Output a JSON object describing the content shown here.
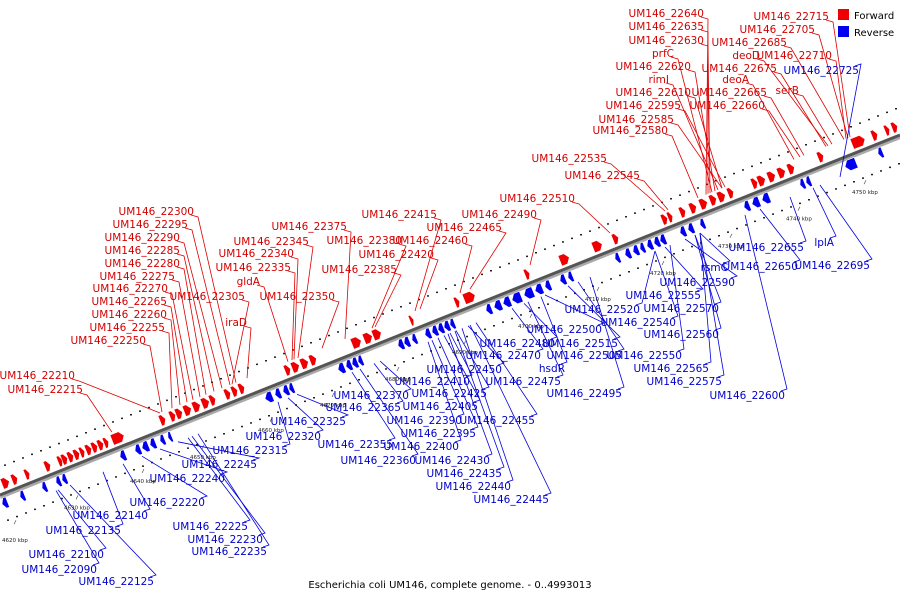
{
  "caption": "Escherichia coli UM146, complete genome. - 0..4993013",
  "legend": [
    {
      "label": "Forward",
      "color": "#ee0000"
    },
    {
      "label": "Reverse",
      "color": "#0000ee"
    }
  ],
  "kbp_ticks": [
    "4620 kbp",
    "4630 kbp",
    "4640 kbp",
    "4650 kbp",
    "4660 kbp",
    "4670 kbp",
    "4680 kbp",
    "4690 kbp",
    "4700 kbp",
    "4710 kbp",
    "4720 kbp",
    "4730 kbp",
    "4740 kbp",
    "4750 kbp"
  ],
  "forward_labels": [
    "UM146_22640",
    "UM146_22635",
    "UM146_22630",
    "prfC",
    "UM146_22620",
    "rimI",
    "UM146_22610",
    "UM146_22595",
    "UM146_22585",
    "UM146_22580",
    "UM146_22715",
    "UM146_22705",
    "UM146_22685",
    "deoD",
    "UM146_22710",
    "UM146_22675",
    "deoA",
    "UM146_22665",
    "UM146_22660",
    "serB",
    "UM146_22535",
    "UM146_22545",
    "UM146_22510",
    "UM146_22490",
    "UM146_22415",
    "UM146_22465",
    "UM146_22375",
    "UM146_22380",
    "UM146_22460",
    "UM146_22385",
    "UM146_22420",
    "UM146_22345",
    "UM146_22340",
    "UM146_22335",
    "gldA",
    "UM146_22350",
    "UM146_22300",
    "UM146_22295",
    "UM146_22290",
    "UM146_22285",
    "UM146_22280",
    "UM146_22275",
    "UM146_22270",
    "UM146_22265",
    "UM146_22260",
    "UM146_22255",
    "UM146_22250",
    "UM146_22305",
    "iraD",
    "UM146_22210",
    "UM146_22215"
  ],
  "reverse_labels": [
    "UM146_22725",
    "UM146_22655",
    "UM146_22650",
    "lplA",
    "UM146_22695",
    "rsmC",
    "UM146_22590",
    "UM146_22555",
    "UM146_22520",
    "UM146_22540",
    "UM146_22570",
    "UM146_22560",
    "UM146_22550",
    "UM146_22565",
    "UM146_22575",
    "UM146_22600",
    "UM146_22500",
    "UM146_22515",
    "UM146_22505",
    "UM146_22480",
    "UM146_22470",
    "hsdR",
    "UM146_22475",
    "UM146_22495",
    "UM146_22450",
    "UM146_22410",
    "UM146_22425",
    "UM146_22405",
    "UM146_22390",
    "UM146_22395",
    "UM146_22400",
    "UM146_22455",
    "UM146_22430",
    "UM146_22435",
    "UM146_22440",
    "UM146_22445",
    "UM146_22370",
    "UM146_22365",
    "UM146_22355",
    "UM146_22360",
    "UM146_22325",
    "UM146_22320",
    "UM146_22315",
    "UM146_22245",
    "UM146_22240",
    "UM146_22220",
    "UM146_22140",
    "UM146_22135",
    "UM146_22225",
    "UM146_22230",
    "UM146_22235",
    "UM146_22100",
    "UM146_22090",
    "UM146_22125"
  ]
}
